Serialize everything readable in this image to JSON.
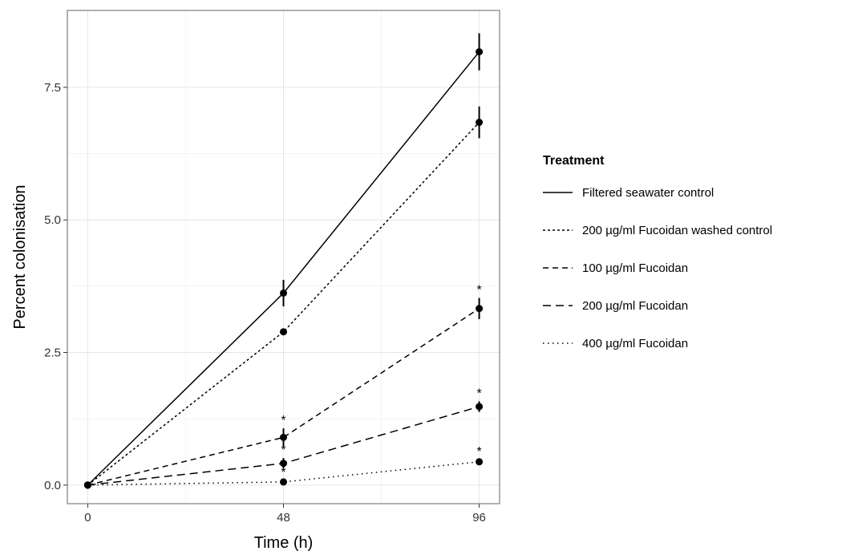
{
  "chart_data": {
    "type": "line",
    "title": "",
    "xlabel": "Time (h)",
    "ylabel": "Percent colonisation",
    "x": [
      0,
      48,
      96
    ],
    "xticks": [
      "0",
      "48",
      "96"
    ],
    "yticks": [
      "0.0",
      "2.5",
      "5.0",
      "7.5"
    ],
    "xlim": [
      -5,
      101
    ],
    "ylim": [
      -0.35,
      8.95
    ],
    "grid": true,
    "legend_title": "Treatment",
    "legend_position": "right",
    "series": [
      {
        "name": "Filtered seawater control",
        "dash": "solid",
        "values": [
          0,
          3.62,
          8.17
        ],
        "errors": [
          0,
          0.25,
          0.35
        ],
        "stars": [
          false,
          false,
          false
        ]
      },
      {
        "name": "200 µg/ml Fucoidan washed control",
        "dash": "short",
        "values": [
          0,
          2.89,
          6.84
        ],
        "errors": [
          0,
          0.05,
          0.3
        ],
        "stars": [
          false,
          false,
          false
        ]
      },
      {
        "name": "100 µg/ml Fucoidan",
        "dash": "medium",
        "values": [
          0,
          0.9,
          3.33
        ],
        "errors": [
          0,
          0.17,
          0.2
        ],
        "stars": [
          false,
          true,
          true
        ]
      },
      {
        "name": "200 µg/ml Fucoidan",
        "dash": "long",
        "values": [
          0,
          0.41,
          1.48
        ],
        "errors": [
          0,
          0.1,
          0.1
        ],
        "stars": [
          false,
          true,
          true
        ]
      },
      {
        "name": "400 µg/ml Fucoidan",
        "dash": "dotted",
        "values": [
          0,
          0.06,
          0.44
        ],
        "errors": [
          0,
          0.03,
          0.04
        ],
        "stars": [
          false,
          true,
          true
        ]
      }
    ],
    "star_symbol": "*"
  }
}
